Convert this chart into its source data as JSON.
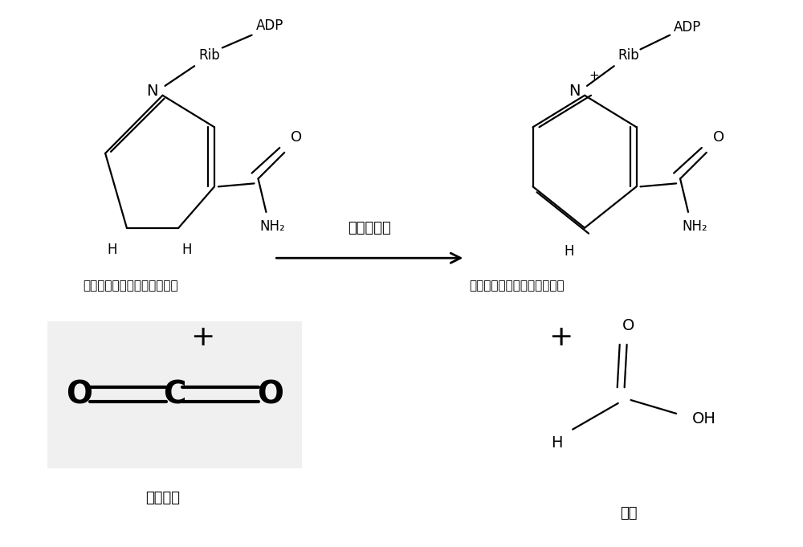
{
  "bg_color": "#ffffff",
  "figsize": [
    10.0,
    6.81
  ],
  "dpi": 100,
  "enzyme_label": "甲酸脱氢酶",
  "arrow_label_left": "还原型烟酰胺腺嘌呤二核苷酸",
  "arrow_label_right": "氧化型烟酰胺腺嘌呤二核苷酸",
  "co2_label": "二氧化碳",
  "formic_label": "甲酸",
  "co2_bg_color": "#f0f0f0",
  "text_color": "#000000",
  "line_color": "#000000"
}
